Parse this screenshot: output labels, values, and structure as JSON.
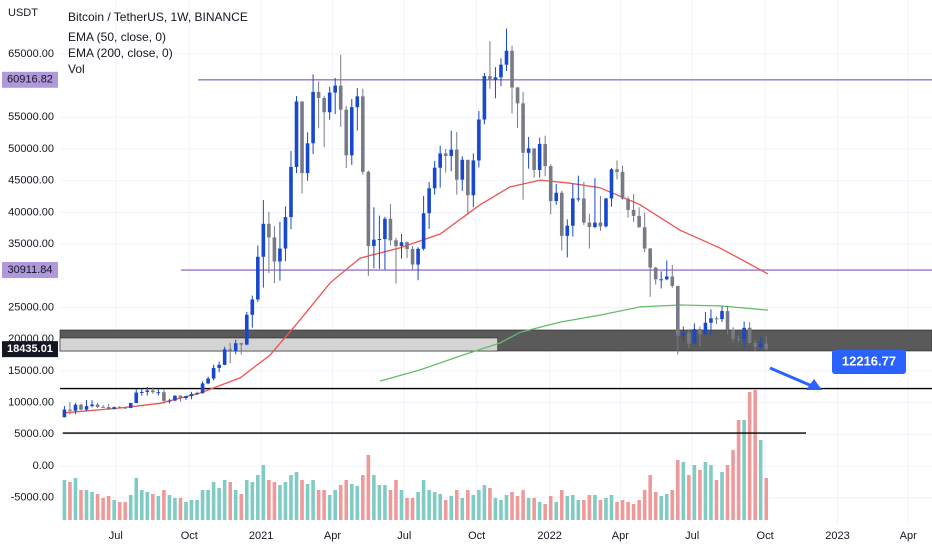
{
  "chart_data": {
    "type": "candlestick",
    "title": "Bitcoin / TetherUS, 1W, BINANCE",
    "y_axis_label": "USDT",
    "volume_label": "Vol",
    "up_color": "#1848cc",
    "down_color": "#787b86",
    "volume_up_color": "#80cbc4",
    "volume_down_color": "#ef9a9a",
    "grid": true,
    "xlim": [
      -0.8,
      157
    ],
    "ylim": [
      -9300,
      73500
    ],
    "xticks": [
      {
        "value": 9.3,
        "label": "Jul"
      },
      {
        "value": 22.6,
        "label": "Oct"
      },
      {
        "value": 35.6,
        "label": "2021"
      },
      {
        "value": 48.5,
        "label": "Apr"
      },
      {
        "value": 61.5,
        "label": "Jul"
      },
      {
        "value": 74.6,
        "label": "Oct"
      },
      {
        "value": 87.8,
        "label": "2022"
      },
      {
        "value": 100.6,
        "label": "Apr"
      },
      {
        "value": 113.6,
        "label": "Jul"
      },
      {
        "value": 126.8,
        "label": "Oct"
      },
      {
        "value": 139.9,
        "label": "2023"
      },
      {
        "value": 152.7,
        "label": "Apr"
      }
    ],
    "yticks": [
      {
        "value": 65000,
        "label": "65000.00"
      },
      {
        "value": 55000,
        "label": "55000.00"
      },
      {
        "value": 50000,
        "label": "50000.00"
      },
      {
        "value": 45000,
        "label": "45000.00"
      },
      {
        "value": 40000,
        "label": "40000.00"
      },
      {
        "value": 35000,
        "label": "35000.00"
      },
      {
        "value": 25000,
        "label": "25000.00"
      },
      {
        "value": 20000,
        "label": "20000.00"
      },
      {
        "value": 15000,
        "label": "15000.00"
      },
      {
        "value": 10000,
        "label": "10000.00"
      },
      {
        "value": 5000,
        "label": "5000.00"
      },
      {
        "value": 0,
        "label": "0.00"
      },
      {
        "value": -5000,
        "label": "-5000.00"
      }
    ],
    "open": [
      7700,
      8900,
      8720,
      9680,
      8900,
      9450,
      9700,
      9330,
      9300,
      9000,
      9290,
      9230,
      9160,
      9930,
      11590,
      11680,
      11910,
      11650,
      11650,
      10280,
      10330,
      11080,
      10730,
      11050,
      11370,
      11500,
      13030,
      13800,
      15480,
      15960,
      18400,
      18170,
      19370,
      19150,
      23850,
      26270,
      33000,
      38200,
      36070,
      32260,
      34300,
      39260,
      47170,
      57500,
      46200,
      50900,
      59000,
      58050,
      55800,
      58900,
      60000,
      56200,
      49000,
      56600,
      58300,
      46400,
      34700,
      35700,
      35800,
      39000,
      35600,
      34700,
      35300,
      34240,
      31780,
      34260,
      39870,
      43800,
      47050,
      49300,
      48900,
      49900,
      45160,
      48300,
      42700,
      48200,
      54650,
      61500,
      60900,
      61300,
      63300,
      65500,
      59700,
      57200,
      49400,
      50100,
      46700,
      50800,
      47300,
      41800,
      43100,
      36300,
      37900,
      42200,
      42200,
      38400,
      37700,
      38400,
      37800,
      42200,
      46800,
      46400,
      42160,
      40400,
      39450,
      37650,
      34300,
      31300,
      29450,
      29450,
      29900,
      28400,
      20550,
      21030,
      19300,
      21600,
      20800,
      22600,
      23300,
      23170,
      24440,
      21500,
      20050,
      19990,
      21800,
      19400,
      18800,
      19310
    ],
    "high": [
      9460,
      10070,
      9950,
      9840,
      10400,
      10380,
      10000,
      9620,
      9780,
      9380,
      9470,
      9330,
      9990,
      12120,
      12060,
      12480,
      12420,
      12090,
      12090,
      10600,
      11180,
      11180,
      10950,
      11700,
      11720,
      13350,
      14100,
      15970,
      16480,
      18820,
      19420,
      19920,
      19420,
      24300,
      26880,
      34780,
      41950,
      40100,
      37850,
      38550,
      40950,
      49700,
      58350,
      57500,
      52640,
      61780,
      60650,
      58400,
      59800,
      61200,
      64850,
      56800,
      57900,
      59600,
      59500,
      46600,
      40800,
      39500,
      39300,
      41300,
      36000,
      36600,
      35400,
      34700,
      34500,
      42600,
      44800,
      48100,
      50500,
      50000,
      52900,
      52700,
      48850,
      48300,
      49300,
      56000,
      62000,
      67000,
      62900,
      64300,
      69000,
      66300,
      59800,
      59000,
      51900,
      50100,
      51800,
      52100,
      47600,
      44500,
      43400,
      38900,
      44500,
      45800,
      44800,
      39800,
      45400,
      42600,
      42300,
      47000,
      48200,
      47400,
      42500,
      42900,
      40800,
      40000,
      34400,
      31400,
      30700,
      32400,
      31700,
      28400,
      22000,
      21600,
      22500,
      22000,
      24300,
      24700,
      23600,
      25200,
      25200,
      21900,
      20600,
      22800,
      22700,
      19900,
      20300,
      20500
    ],
    "low": [
      7660,
      8100,
      8200,
      8800,
      8640,
      9260,
      9150,
      9200,
      8830,
      8900,
      9120,
      9000,
      9120,
      9920,
      11100,
      11120,
      11400,
      11120,
      9820,
      9880,
      10200,
      10130,
      10430,
      10530,
      11200,
      11400,
      12900,
      13520,
      14800,
      15920,
      16200,
      17620,
      17580,
      19050,
      21820,
      25900,
      28130,
      30420,
      28850,
      29240,
      32300,
      37350,
      46200,
      43000,
      45000,
      49200,
      53270,
      50300,
      54600,
      55500,
      53500,
      47000,
      47500,
      52900,
      46000,
      30000,
      31200,
      31100,
      31000,
      34800,
      28800,
      32700,
      32800,
      31000,
      29300,
      34000,
      37400,
      42800,
      43900,
      46300,
      46500,
      42800,
      43400,
      39600,
      40800,
      47100,
      53900,
      59500,
      58000,
      59900,
      62300,
      55600,
      53300,
      42000,
      46900,
      45500,
      45500,
      45700,
      39700,
      41200,
      34000,
      32900,
      36200,
      41700,
      38000,
      34300,
      37500,
      37100,
      37600,
      40900,
      45200,
      42000,
      39200,
      38500,
      37600,
      33700,
      26700,
      28600,
      28000,
      29300,
      28100,
      17600,
      19600,
      18600,
      19200,
      18900,
      20800,
      20700,
      22400,
      22700,
      20800,
      19500,
      19500,
      18500,
      19300,
      18100,
      18500,
      18200
    ],
    "close": [
      8900,
      8720,
      9680,
      8900,
      9450,
      9700,
      9330,
      9300,
      9000,
      9290,
      9230,
      9160,
      9930,
      11590,
      11680,
      11910,
      11650,
      11650,
      10280,
      10330,
      11080,
      10730,
      11050,
      11370,
      11500,
      13030,
      13800,
      15480,
      15960,
      18400,
      18170,
      19370,
      19150,
      23850,
      26270,
      33000,
      38200,
      36070,
      32260,
      34300,
      39260,
      47170,
      57500,
      46200,
      50900,
      59000,
      58050,
      55800,
      58900,
      60000,
      56200,
      49000,
      56600,
      58300,
      46400,
      34700,
      35700,
      35800,
      39000,
      35600,
      34700,
      35300,
      34240,
      31780,
      34260,
      39870,
      43800,
      47050,
      49300,
      48900,
      49900,
      45160,
      48300,
      42700,
      48200,
      54650,
      61500,
      60900,
      61300,
      63300,
      65500,
      59700,
      57200,
      49400,
      50100,
      46700,
      50800,
      47300,
      41800,
      43100,
      36300,
      37900,
      42200,
      42200,
      38400,
      37700,
      38400,
      37800,
      42200,
      46800,
      46400,
      42160,
      40400,
      39450,
      37650,
      34300,
      31300,
      29450,
      29450,
      29900,
      28400,
      20550,
      21030,
      19300,
      21600,
      20800,
      22600,
      23300,
      23170,
      24440,
      21500,
      20050,
      19990,
      21800,
      19400,
      18800,
      19310,
      18435.01
    ],
    "volume": [
      400000,
      380000,
      420000,
      300000,
      300000,
      280000,
      260000,
      220000,
      240000,
      200000,
      180000,
      180000,
      250000,
      420000,
      300000,
      280000,
      260000,
      240000,
      300000,
      250000,
      220000,
      220000,
      180000,
      200000,
      200000,
      300000,
      300000,
      380000,
      320000,
      400000,
      380000,
      300000,
      260000,
      400000,
      380000,
      450000,
      550000,
      400000,
      380000,
      350000,
      380000,
      450000,
      480000,
      400000,
      360000,
      400000,
      300000,
      300000,
      250000,
      300000,
      350000,
      400000,
      360000,
      340000,
      450000,
      650000,
      450000,
      350000,
      350000,
      300000,
      400000,
      300000,
      220000,
      220000,
      280000,
      400000,
      300000,
      280000,
      260000,
      200000,
      240000,
      300000,
      220000,
      300000,
      250000,
      300000,
      350000,
      320000,
      220000,
      200000,
      250000,
      280000,
      240000,
      300000,
      220000,
      220000,
      180000,
      160000,
      240000,
      180000,
      300000,
      240000,
      250000,
      200000,
      200000,
      250000,
      250000,
      200000,
      220000,
      250000,
      180000,
      200000,
      180000,
      160000,
      200000,
      300000,
      450000,
      280000,
      240000,
      260000,
      300000,
      600000,
      580000,
      450000,
      550000,
      500000,
      580000,
      550000,
      400000,
      480000,
      550000,
      700000,
      1000000,
      1000000,
      1280000,
      1300000,
      800000,
      420000
    ],
    "lines": [
      {
        "name": "EMA (50, close, 0)",
        "color": "#ef5350",
        "x": [
          0,
          10.1,
          17.3,
          24.5,
          31.8,
          37.2,
          42.6,
          48.1,
          53.5,
          60.7,
          68,
          75.2,
          80.6,
          86.1,
          91.5,
          96.9,
          104.2,
          111.4,
          118.6,
          127.3
        ],
        "values": [
          8400,
          9150,
          9900,
          11500,
          13900,
          17500,
          23000,
          28900,
          32800,
          34400,
          36600,
          41200,
          44000,
          45100,
          44600,
          43900,
          41200,
          37200,
          34400,
          30300
        ]
      },
      {
        "name": "EMA (200, close, 0)",
        "color": "#66bb6a",
        "x": [
          57.1,
          64.3,
          71.6,
          78.8,
          82.5,
          89.7,
          96.9,
          104.2,
          111.4,
          118.6,
          127.3
        ],
        "values": [
          13400,
          15150,
          17350,
          19400,
          21100,
          22700,
          23800,
          25100,
          25400,
          25250,
          24600
        ]
      }
    ],
    "zones": [
      {
        "from": 18144,
        "to": 21457,
        "x_start": -0.8,
        "x_end": 157,
        "color": "#5a5a5a"
      },
      {
        "from": 18144,
        "to": 20196,
        "x_start": -0.8,
        "x_end": 78.4,
        "color": "#d4d4d4"
      }
    ],
    "levels": [
      {
        "value": 60916.82,
        "label": "60916.82",
        "color": "#9575cd",
        "x_start": 24.2,
        "x_end": 157
      },
      {
        "value": 30911.84,
        "label": "30911.84",
        "color": "#9575cd",
        "x_start": 21.1,
        "x_end": 157
      },
      {
        "value": 12216.77,
        "color": "#000000",
        "x_start": -0.8,
        "x_end": 157
      },
      {
        "value": 5207,
        "color": "#000000",
        "x_start": -0.3,
        "x_end": 134.2
      }
    ],
    "last_price": {
      "value": 18435.01,
      "label": "18435.01"
    },
    "annotation": {
      "text": "12216.77"
    }
  }
}
